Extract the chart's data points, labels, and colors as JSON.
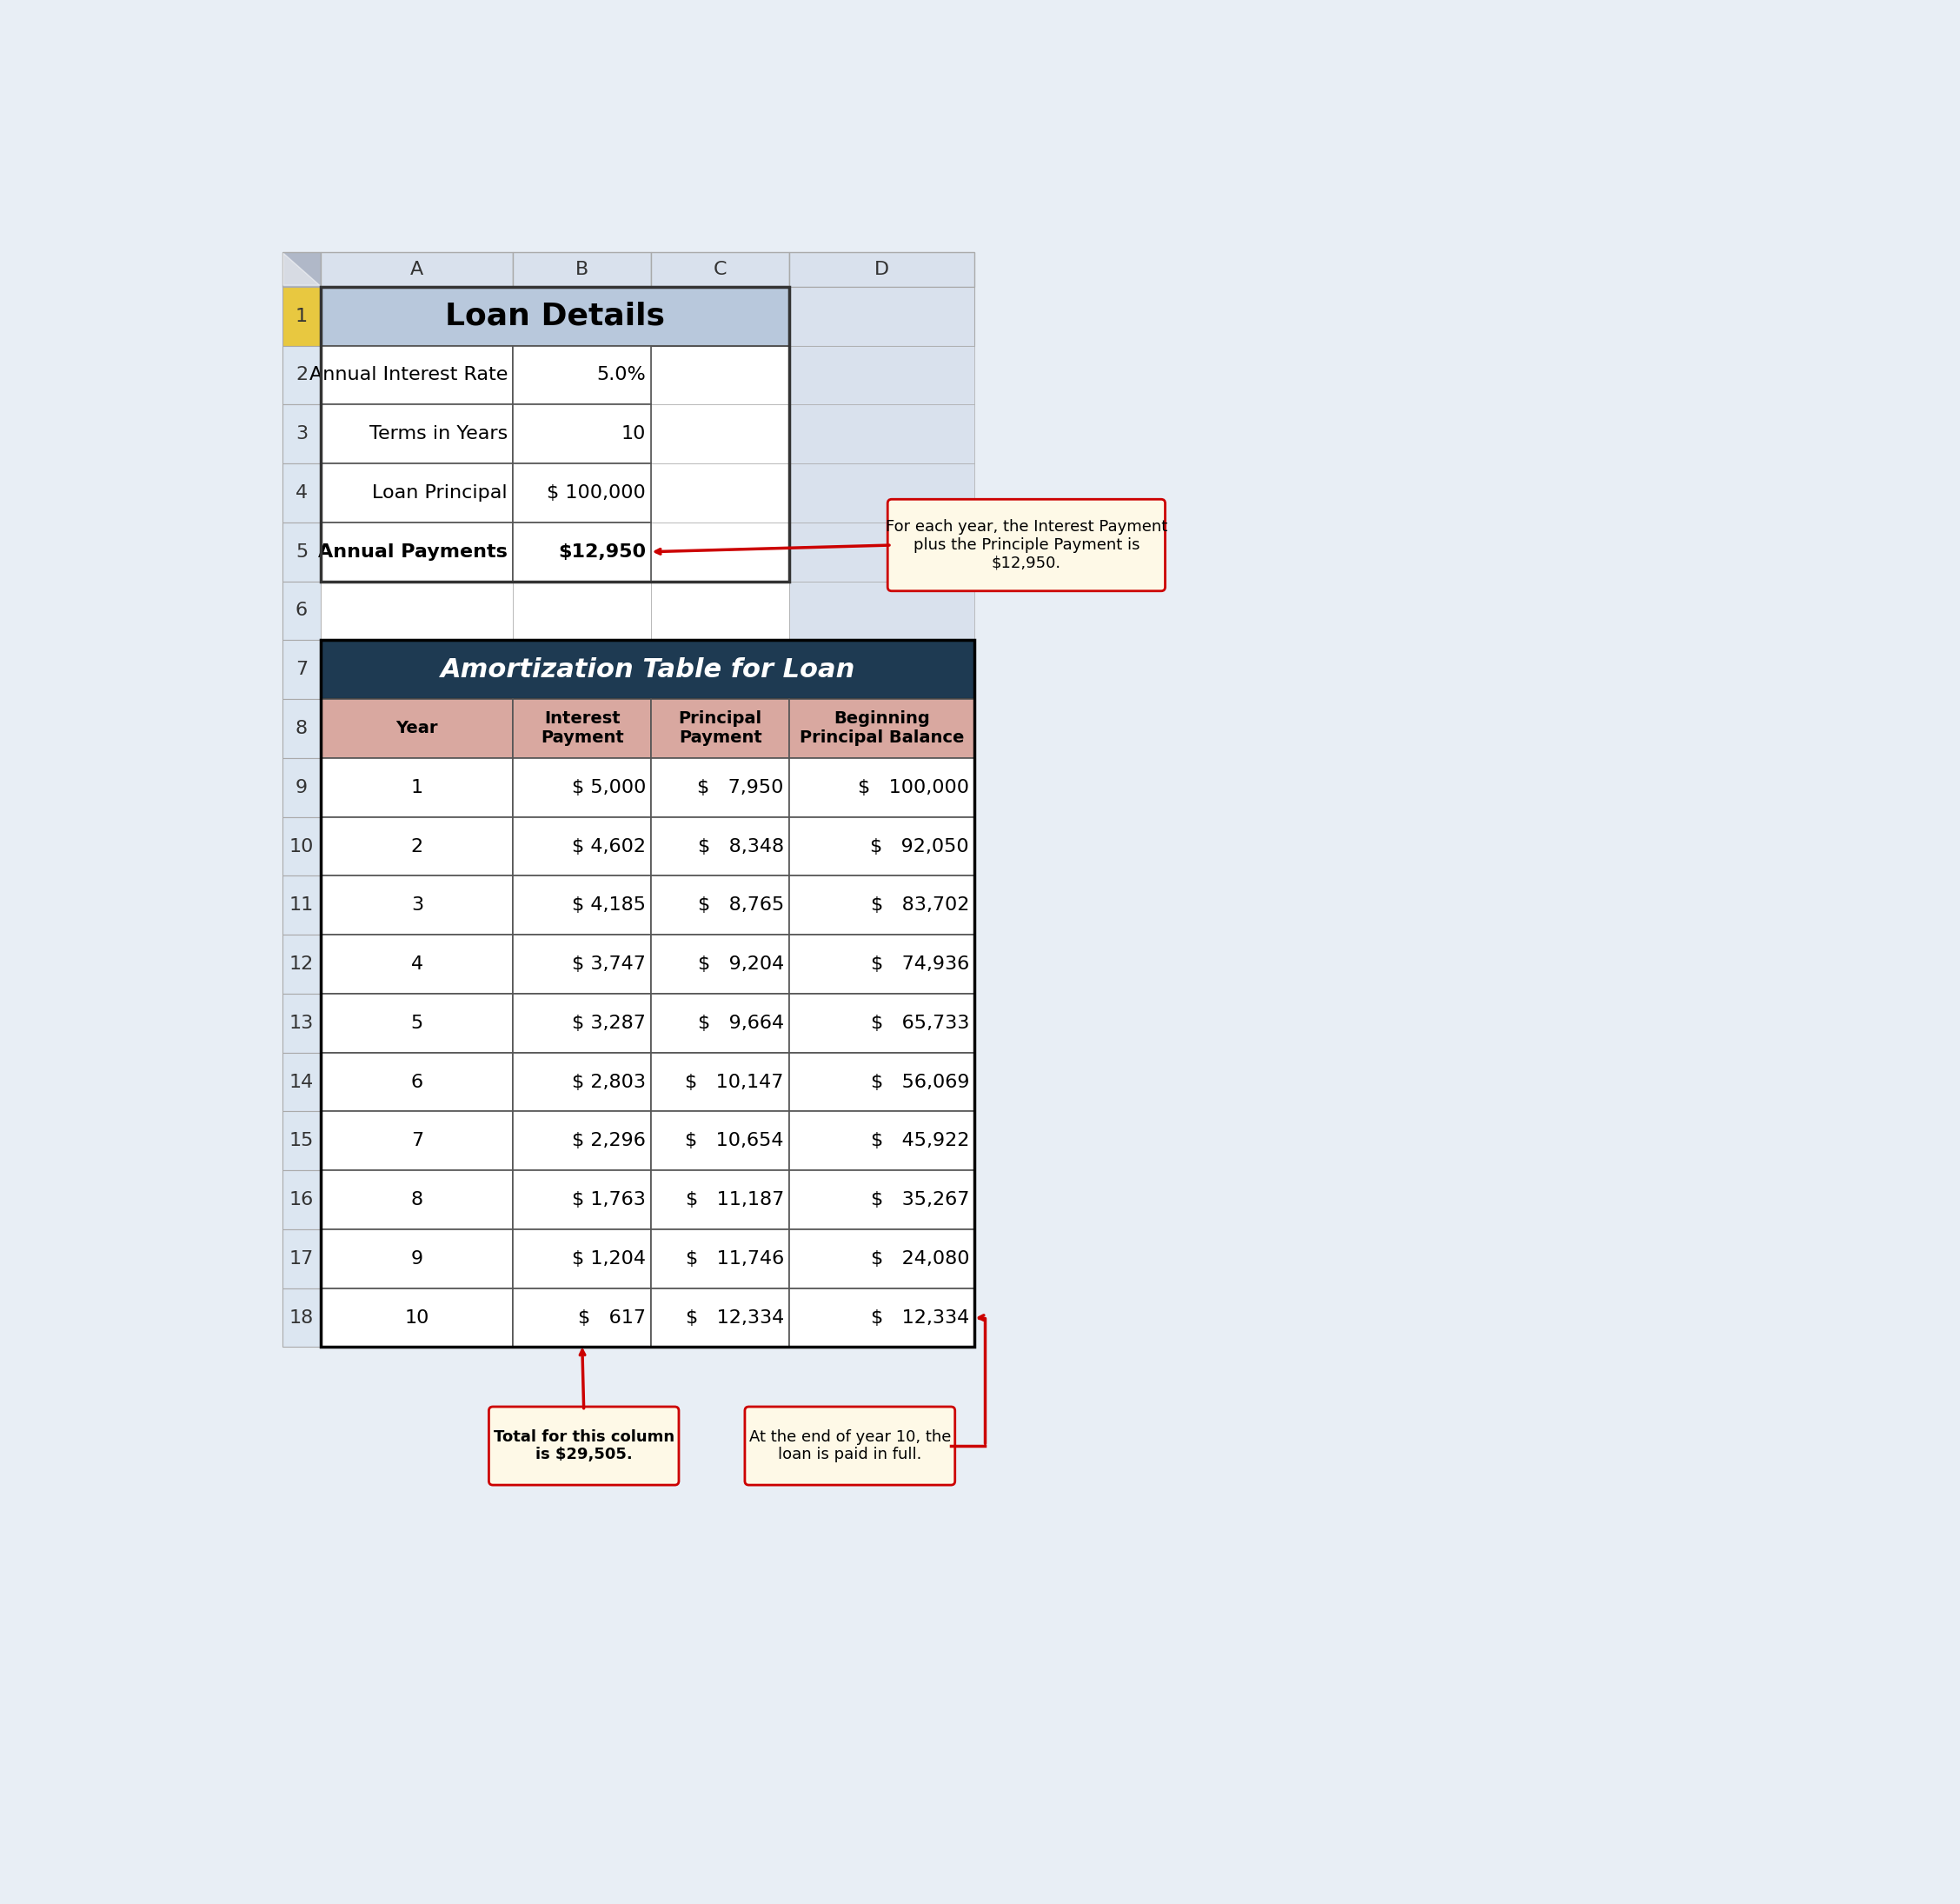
{
  "loan_details_title": "Loan Details",
  "loan_rows": [
    {
      "label": "Annual Interest Rate",
      "value": "5.0%",
      "bold": false
    },
    {
      "label": "Terms in Years",
      "value": "10",
      "bold": false
    },
    {
      "label": "Loan Principal",
      "value": "$ 100,000",
      "bold": false
    },
    {
      "label": "Annual Payments",
      "value": "$12,950",
      "bold": true
    }
  ],
  "amort_title": "Amortization Table for Loan",
  "amort_headers": [
    "Year",
    "Interest\nPayment",
    "Principal\nPayment",
    "Beginning\nPrincipal Balance"
  ],
  "interest_vals": [
    "$ 5,000",
    "$ 4,602",
    "$ 4,185",
    "$ 3,747",
    "$ 3,287",
    "$ 2,803",
    "$ 2,296",
    "$ 1,763",
    "$ 1,204",
    "$   617"
  ],
  "principal_vals": [
    "$   7,950",
    "$   8,348",
    "$   8,765",
    "$   9,204",
    "$   9,664",
    "$   10,147",
    "$   10,654",
    "$   11,187",
    "$   11,746",
    "$   12,334"
  ],
  "balance_vals": [
    "$   100,000",
    "$   92,050",
    "$   83,702",
    "$   74,936",
    "$   65,733",
    "$   56,069",
    "$   45,922",
    "$   35,267",
    "$   24,080",
    "$   12,334"
  ],
  "col_labels": [
    "A",
    "B",
    "C",
    "D"
  ],
  "colors": {
    "spreadsheet_bg": "#e8eef5",
    "col_header_bg": "#d9e1ed",
    "loan_details_bg": "#b8c8dc",
    "amort_header_dark": "#1e3a52",
    "amort_row_header": "#d9a8a0",
    "row_num_bg": "#dce6f1",
    "row1_num_bg": "#e8c840",
    "corner_bg": "#b0b8c8",
    "annotation_bg": "#fef9e7",
    "annotation_border": "#cc0000",
    "arrow_color": "#cc0000",
    "white": "#ffffff",
    "border_thick": "#333333",
    "border_thin": "#aaaaaa",
    "border_medium": "#555555"
  },
  "ann1_text": "For each year, the Interest Payment\nplus the Principle Payment is\n$12,950.",
  "ann2_text": "Total for this column\nis $29,505.",
  "ann3_text": "At the end of year 10, the\nloan is paid in full."
}
